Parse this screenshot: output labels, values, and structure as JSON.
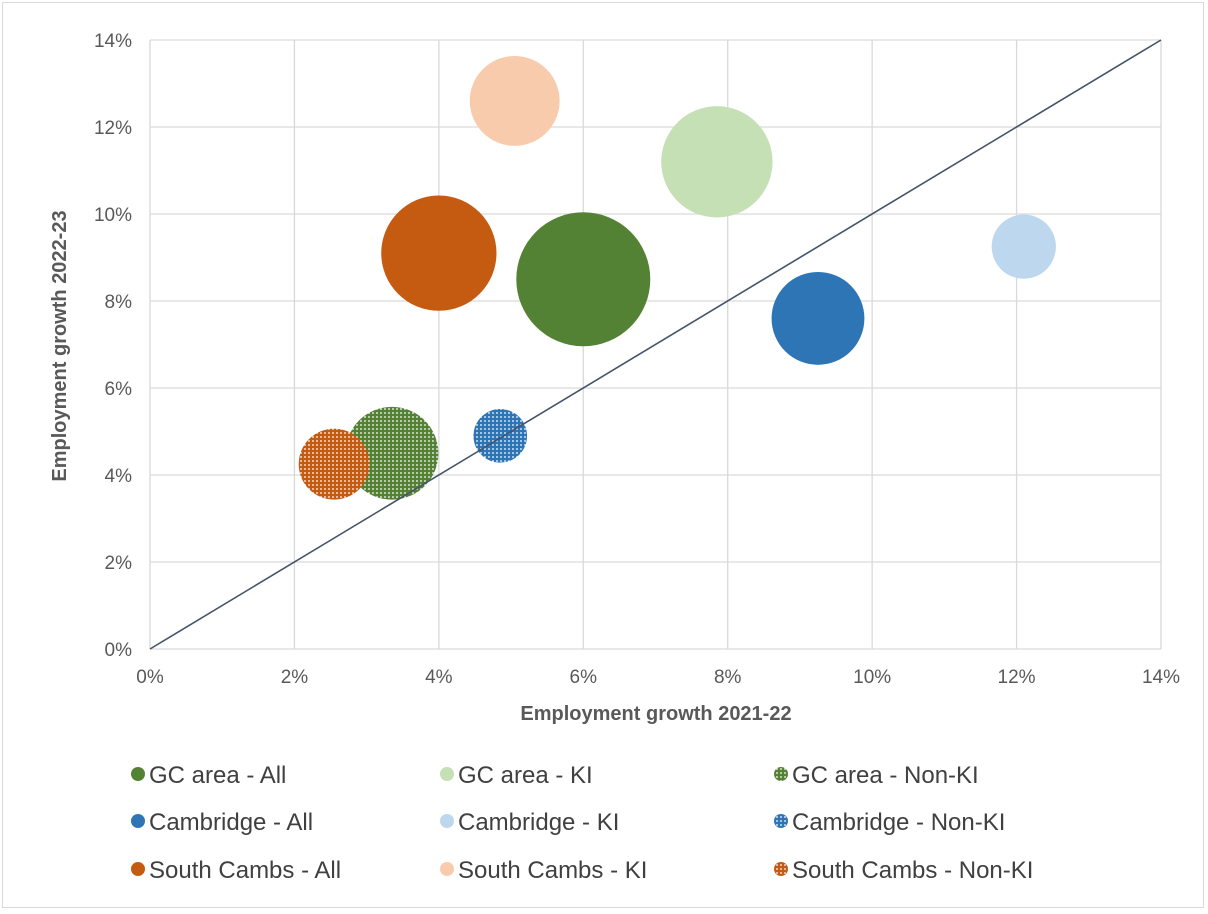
{
  "chart_data": {
    "type": "bubble",
    "title": "",
    "xlabel": "Employment growth 2021-22",
    "ylabel": "Employment growth 2022-23",
    "xlim": [
      0,
      14
    ],
    "ylim": [
      0,
      14
    ],
    "x_ticks": [
      "0%",
      "2%",
      "4%",
      "6%",
      "8%",
      "10%",
      "12%",
      "14%"
    ],
    "y_ticks": [
      "0%",
      "2%",
      "4%",
      "6%",
      "8%",
      "10%",
      "12%",
      "14%"
    ],
    "grid": true,
    "reference_line": {
      "from": [
        0,
        0
      ],
      "to": [
        14,
        14
      ],
      "color": "#44546a"
    },
    "legend_position": "bottom",
    "series": [
      {
        "name": "GC area - All",
        "x": 6.0,
        "y": 8.5,
        "size": 10,
        "color": "#548235",
        "pattern": false
      },
      {
        "name": "GC area - KI",
        "x": 7.85,
        "y": 11.2,
        "size": 6.9,
        "color": "#c5e0b4",
        "pattern": false
      },
      {
        "name": "GC area - Non-KI",
        "x": 3.35,
        "y": 4.5,
        "size": 4.8,
        "color": "#548235",
        "pattern": true
      },
      {
        "name": "Cambridge - All",
        "x": 9.25,
        "y": 7.6,
        "size": 4.8,
        "color": "#2e75b6",
        "pattern": false
      },
      {
        "name": "Cambridge - KI",
        "x": 12.1,
        "y": 9.25,
        "size": 2.3,
        "color": "#bdd7ee",
        "pattern": false
      },
      {
        "name": "Cambridge - Non-KI",
        "x": 4.85,
        "y": 4.9,
        "size": 1.6,
        "color": "#2e75b6",
        "pattern": true
      },
      {
        "name": "South Cambs - All",
        "x": 4.0,
        "y": 9.1,
        "size": 7.4,
        "color": "#c55a11",
        "pattern": false
      },
      {
        "name": "South Cambs - KI",
        "x": 5.05,
        "y": 12.6,
        "size": 4.5,
        "color": "#f8cbad",
        "pattern": false
      },
      {
        "name": "South Cambs - Non-KI",
        "x": 2.55,
        "y": 4.25,
        "size": 2.8,
        "color": "#c55a11",
        "pattern": true
      }
    ]
  }
}
